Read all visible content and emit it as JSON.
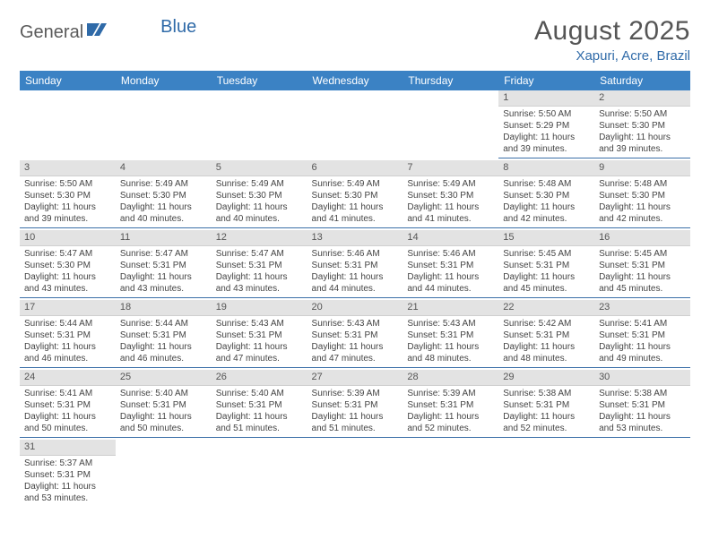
{
  "brand": {
    "part1": "General",
    "part2": "Blue"
  },
  "title": "August 2025",
  "location": "Xapuri, Acre, Brazil",
  "colors": {
    "header_bg": "#3b82c4",
    "accent": "#2f6aa8",
    "daynum_bg": "#e3e3e3",
    "cell_border": "#3b6fa8",
    "text": "#444444"
  },
  "weekdays": [
    "Sunday",
    "Monday",
    "Tuesday",
    "Wednesday",
    "Thursday",
    "Friday",
    "Saturday"
  ],
  "weeks": [
    [
      null,
      null,
      null,
      null,
      null,
      {
        "n": "1",
        "sunrise": "5:50 AM",
        "sunset": "5:29 PM",
        "daylight": "11 hours and 39 minutes."
      },
      {
        "n": "2",
        "sunrise": "5:50 AM",
        "sunset": "5:30 PM",
        "daylight": "11 hours and 39 minutes."
      }
    ],
    [
      {
        "n": "3",
        "sunrise": "5:50 AM",
        "sunset": "5:30 PM",
        "daylight": "11 hours and 39 minutes."
      },
      {
        "n": "4",
        "sunrise": "5:49 AM",
        "sunset": "5:30 PM",
        "daylight": "11 hours and 40 minutes."
      },
      {
        "n": "5",
        "sunrise": "5:49 AM",
        "sunset": "5:30 PM",
        "daylight": "11 hours and 40 minutes."
      },
      {
        "n": "6",
        "sunrise": "5:49 AM",
        "sunset": "5:30 PM",
        "daylight": "11 hours and 41 minutes."
      },
      {
        "n": "7",
        "sunrise": "5:49 AM",
        "sunset": "5:30 PM",
        "daylight": "11 hours and 41 minutes."
      },
      {
        "n": "8",
        "sunrise": "5:48 AM",
        "sunset": "5:30 PM",
        "daylight": "11 hours and 42 minutes."
      },
      {
        "n": "9",
        "sunrise": "5:48 AM",
        "sunset": "5:30 PM",
        "daylight": "11 hours and 42 minutes."
      }
    ],
    [
      {
        "n": "10",
        "sunrise": "5:47 AM",
        "sunset": "5:30 PM",
        "daylight": "11 hours and 43 minutes."
      },
      {
        "n": "11",
        "sunrise": "5:47 AM",
        "sunset": "5:31 PM",
        "daylight": "11 hours and 43 minutes."
      },
      {
        "n": "12",
        "sunrise": "5:47 AM",
        "sunset": "5:31 PM",
        "daylight": "11 hours and 43 minutes."
      },
      {
        "n": "13",
        "sunrise": "5:46 AM",
        "sunset": "5:31 PM",
        "daylight": "11 hours and 44 minutes."
      },
      {
        "n": "14",
        "sunrise": "5:46 AM",
        "sunset": "5:31 PM",
        "daylight": "11 hours and 44 minutes."
      },
      {
        "n": "15",
        "sunrise": "5:45 AM",
        "sunset": "5:31 PM",
        "daylight": "11 hours and 45 minutes."
      },
      {
        "n": "16",
        "sunrise": "5:45 AM",
        "sunset": "5:31 PM",
        "daylight": "11 hours and 45 minutes."
      }
    ],
    [
      {
        "n": "17",
        "sunrise": "5:44 AM",
        "sunset": "5:31 PM",
        "daylight": "11 hours and 46 minutes."
      },
      {
        "n": "18",
        "sunrise": "5:44 AM",
        "sunset": "5:31 PM",
        "daylight": "11 hours and 46 minutes."
      },
      {
        "n": "19",
        "sunrise": "5:43 AM",
        "sunset": "5:31 PM",
        "daylight": "11 hours and 47 minutes."
      },
      {
        "n": "20",
        "sunrise": "5:43 AM",
        "sunset": "5:31 PM",
        "daylight": "11 hours and 47 minutes."
      },
      {
        "n": "21",
        "sunrise": "5:43 AM",
        "sunset": "5:31 PM",
        "daylight": "11 hours and 48 minutes."
      },
      {
        "n": "22",
        "sunrise": "5:42 AM",
        "sunset": "5:31 PM",
        "daylight": "11 hours and 48 minutes."
      },
      {
        "n": "23",
        "sunrise": "5:41 AM",
        "sunset": "5:31 PM",
        "daylight": "11 hours and 49 minutes."
      }
    ],
    [
      {
        "n": "24",
        "sunrise": "5:41 AM",
        "sunset": "5:31 PM",
        "daylight": "11 hours and 50 minutes."
      },
      {
        "n": "25",
        "sunrise": "5:40 AM",
        "sunset": "5:31 PM",
        "daylight": "11 hours and 50 minutes."
      },
      {
        "n": "26",
        "sunrise": "5:40 AM",
        "sunset": "5:31 PM",
        "daylight": "11 hours and 51 minutes."
      },
      {
        "n": "27",
        "sunrise": "5:39 AM",
        "sunset": "5:31 PM",
        "daylight": "11 hours and 51 minutes."
      },
      {
        "n": "28",
        "sunrise": "5:39 AM",
        "sunset": "5:31 PM",
        "daylight": "11 hours and 52 minutes."
      },
      {
        "n": "29",
        "sunrise": "5:38 AM",
        "sunset": "5:31 PM",
        "daylight": "11 hours and 52 minutes."
      },
      {
        "n": "30",
        "sunrise": "5:38 AM",
        "sunset": "5:31 PM",
        "daylight": "11 hours and 53 minutes."
      }
    ],
    [
      {
        "n": "31",
        "sunrise": "5:37 AM",
        "sunset": "5:31 PM",
        "daylight": "11 hours and 53 minutes."
      },
      null,
      null,
      null,
      null,
      null,
      null
    ]
  ],
  "labels": {
    "sunrise": "Sunrise:",
    "sunset": "Sunset:",
    "daylight": "Daylight:"
  }
}
